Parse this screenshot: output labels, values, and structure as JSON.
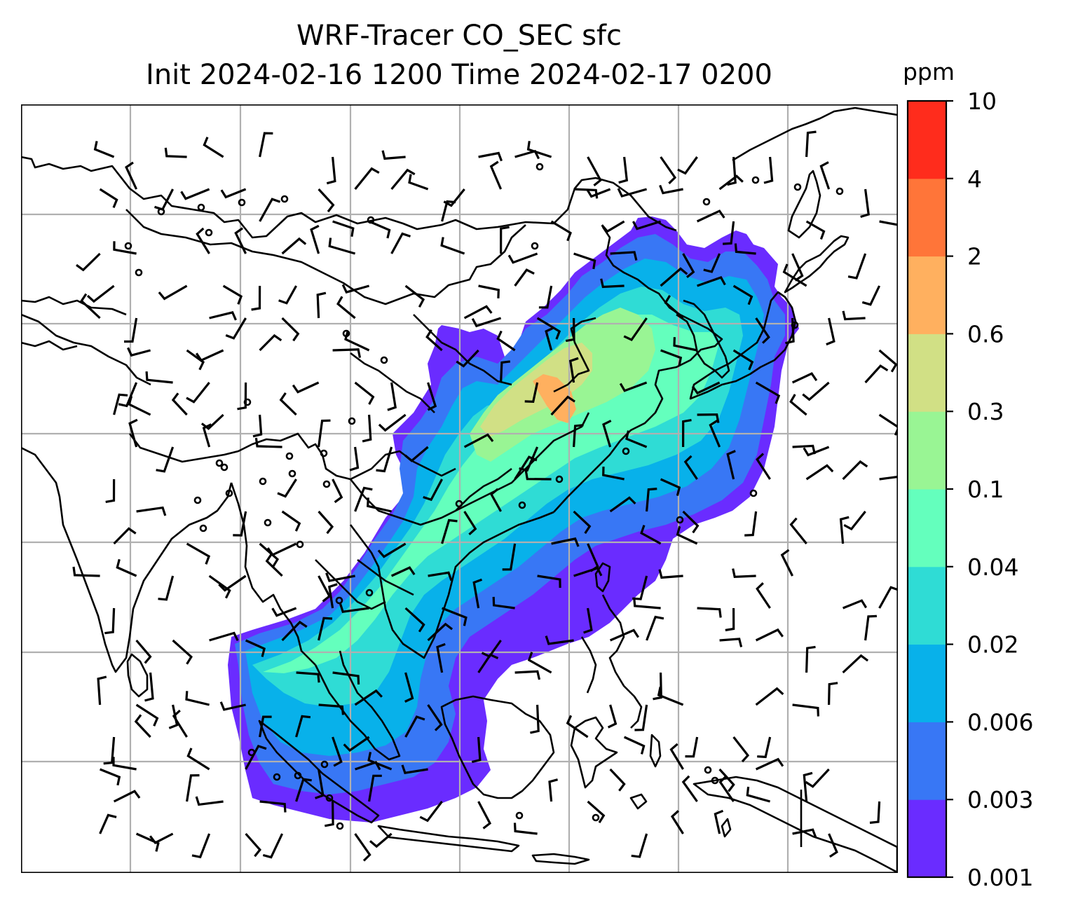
{
  "title_line1": "WRF-Tracer CO_SEC sfc",
  "title_line2": "Init 2024-02-16 1200 Time 2024-02-17 0200",
  "colorbar": {
    "unit": "ppm",
    "levels": [
      "0.001",
      "0.003",
      "0.006",
      "0.02",
      "0.04",
      "0.1",
      "0.3",
      "0.6",
      "2",
      "4",
      "10"
    ],
    "colors": [
      "#6a2cff",
      "#3877f5",
      "#08b1ea",
      "#2fdcd5",
      "#64ffbd",
      "#99f594",
      "#d1e085",
      "#ffb05f",
      "#ff7539",
      "#ff2c1c"
    ]
  },
  "map": {
    "field": "CO_SEC",
    "level": "sfc",
    "gridlines": true,
    "wind_barbs": true,
    "calm_markers": true
  }
}
